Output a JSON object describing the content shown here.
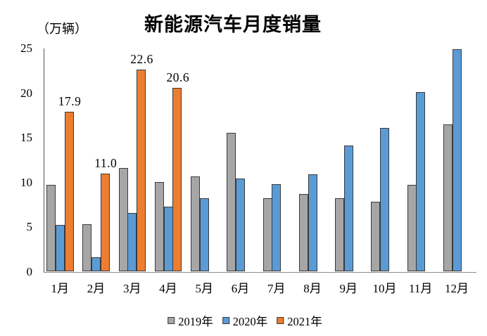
{
  "title": "新能源汽车月度销量",
  "unit_label": "（万辆）",
  "colors": {
    "series_2019": "#A6A6A6",
    "series_2020": "#5B9BD5",
    "series_2021": "#ED7D31",
    "bar_border": "#3a3a3a",
    "y_axis": "#555555",
    "x_axis": "#898989",
    "text": "#000000"
  },
  "legend": [
    {
      "label": "2019年",
      "color": "#A6A6A6"
    },
    {
      "label": "2020年",
      "color": "#5B9BD5"
    },
    {
      "label": "2021年",
      "color": "#ED7D31"
    }
  ],
  "chart_data": {
    "type": "bar",
    "title": "新能源汽车月度销量",
    "unit": "万辆",
    "categories": [
      "1月",
      "2月",
      "3月",
      "4月",
      "5月",
      "6月",
      "7月",
      "8月",
      "9月",
      "10月",
      "11月",
      "12月"
    ],
    "series": [
      {
        "name": "2019年",
        "color": "#A6A6A6",
        "values": [
          9.7,
          5.3,
          11.6,
          10.0,
          10.7,
          15.5,
          8.2,
          8.7,
          8.2,
          7.8,
          9.7,
          16.5
        ]
      },
      {
        "name": "2020年",
        "color": "#5B9BD5",
        "values": [
          5.2,
          1.6,
          6.6,
          7.3,
          8.2,
          10.4,
          9.8,
          10.9,
          14.1,
          16.1,
          20.1,
          24.9
        ]
      },
      {
        "name": "2021年",
        "color": "#ED7D31",
        "values": [
          17.9,
          11.0,
          22.6,
          20.6,
          null,
          null,
          null,
          null,
          null,
          null,
          null,
          null
        ]
      }
    ],
    "data_labels": [
      {
        "series": "2021年",
        "category": "1月",
        "text": "17.9"
      },
      {
        "series": "2021年",
        "category": "2月",
        "text": "11.0"
      },
      {
        "series": "2021年",
        "category": "3月",
        "text": "22.6"
      },
      {
        "series": "2021年",
        "category": "4月",
        "text": "20.6"
      }
    ],
    "y_ticks": [
      0,
      5,
      10,
      15,
      20,
      25
    ],
    "ylim": [
      0,
      25
    ],
    "grid": false,
    "legend_position": "bottom"
  }
}
